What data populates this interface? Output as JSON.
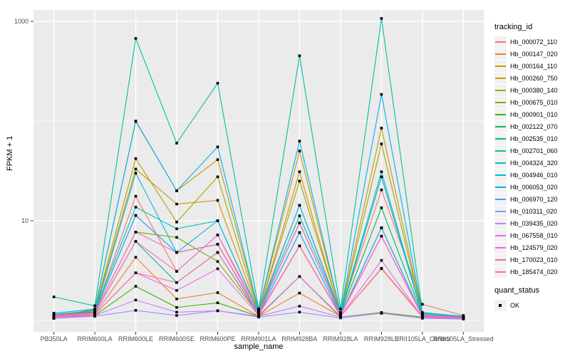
{
  "colors": {
    "panel_bg": "#EBEBEB",
    "grid_major": "#FFFFFF",
    "grid_minor": "#FFFFFF",
    "axis_text": "#4D4D4D",
    "tick_mark": "#333333",
    "point": "#000000",
    "legend_key_bg": "#F2F2F2"
  },
  "chart_data": {
    "type": "line",
    "title": "",
    "xlabel": "sample_name",
    "ylabel": "FPKM + 1",
    "y_scale": "log10",
    "ylim": [
      0.77,
      1300
    ],
    "yticks": [
      10,
      1000
    ],
    "yticks_minor": [
      1,
      100
    ],
    "grid": true,
    "legend_position": "right",
    "categories": [
      "PB350LA",
      "RRIM600LA",
      "RRIM600LE",
      "RRIM600SE",
      "RRIM600PE",
      "RRIM901LA",
      "RRIM928BA",
      "RRIM928LA",
      "RRIM928LE",
      "RRII105LA_Control",
      "RRII105LA_Stressed"
    ],
    "legend": {
      "color_title": "tracking_id",
      "shape_title": "quant_status",
      "shape_items": [
        "OK"
      ]
    },
    "series": [
      {
        "name": "Hb_000072_110",
        "color": "#F8766D",
        "values": [
          1.15,
          1.2,
          17.6,
          3.1,
          7.2,
          1.25,
          14.3,
          1.2,
          20.4,
          1.45,
          1.12
        ]
      },
      {
        "name": "Hb_000147_020",
        "color": "#EA8331",
        "values": [
          1.05,
          1.15,
          4.3,
          1.64,
          1.9,
          1.1,
          1.88,
          1.1,
          3.34,
          1.1,
          1.05
        ]
      },
      {
        "name": "Hb_000164_110",
        "color": "#D89000",
        "values": [
          1.1,
          1.25,
          33,
          14.7,
          16,
          1.2,
          31,
          1.15,
          27.6,
          1.15,
          1.08
        ]
      },
      {
        "name": "Hb_000260_750",
        "color": "#C09B00",
        "values": [
          1.08,
          1.3,
          99,
          20,
          41,
          1.25,
          50,
          1.2,
          85,
          1.18,
          1.1
        ]
      },
      {
        "name": "Hb_000380_140",
        "color": "#A3A500",
        "values": [
          1.12,
          1.28,
          42,
          9.7,
          27.6,
          1.22,
          25,
          1.18,
          59,
          1.15,
          1.07
        ]
      },
      {
        "name": "Hb_000675_010",
        "color": "#7CAE00",
        "values": [
          1.1,
          1.2,
          7.7,
          6.8,
          3.9,
          1.15,
          5.6,
          1.12,
          8.5,
          1.1,
          1.05
        ]
      },
      {
        "name": "Hb_000901_010",
        "color": "#39B600",
        "values": [
          1.05,
          1.12,
          2.2,
          1.35,
          1.5,
          1.1,
          2.76,
          1.08,
          1.2,
          1.08,
          1.04
        ]
      },
      {
        "name": "Hb_002122_070",
        "color": "#00BB4E",
        "values": [
          1.12,
          1.22,
          11.3,
          4.8,
          5.8,
          1.18,
          9.5,
          1.15,
          13.5,
          1.12,
          1.06
        ]
      },
      {
        "name": "Hb_002535_010",
        "color": "#00BF7D",
        "values": [
          1.1,
          1.18,
          6.2,
          2.4,
          4.8,
          1.15,
          7.6,
          1.12,
          8.5,
          1.1,
          1.05
        ]
      },
      {
        "name": "Hb_002701_060",
        "color": "#00C1A3",
        "values": [
          1.72,
          1.4,
          674,
          60,
          240,
          1.3,
          452,
          1.3,
          1070,
          1.2,
          1.1
        ]
      },
      {
        "name": "Hb_004324_320",
        "color": "#00BFC4",
        "values": [
          1.15,
          1.25,
          13.7,
          8.3,
          10,
          1.2,
          11.2,
          1.18,
          31,
          1.15,
          1.08
        ]
      },
      {
        "name": "Hb_004946_010",
        "color": "#00BAE0",
        "values": [
          1.1,
          1.2,
          30,
          4.8,
          10,
          1.18,
          14.3,
          1.15,
          27.6,
          1.12,
          1.06
        ]
      },
      {
        "name": "Hb_006053_020",
        "color": "#00B0F6",
        "values": [
          1.18,
          1.3,
          100,
          20,
          55,
          1.25,
          63,
          1.2,
          185,
          1.18,
          1.1
        ]
      },
      {
        "name": "Hb_006970_120",
        "color": "#35A2FF",
        "values": [
          1.1,
          1.2,
          11.3,
          4.8,
          5.8,
          1.15,
          7.6,
          1.12,
          8.5,
          1.1,
          1.05
        ]
      },
      {
        "name": "Hb_010311_020",
        "color": "#9590FF",
        "values": [
          1.05,
          1.1,
          1.26,
          1.12,
          1.25,
          1.08,
          1.21,
          1.06,
          1.18,
          1.05,
          1.03
        ]
      },
      {
        "name": "Hb_039435_020",
        "color": "#C77CFF",
        "values": [
          1.06,
          1.12,
          1.6,
          1.21,
          1.25,
          1.1,
          1.39,
          1.08,
          1.18,
          1.06,
          1.04
        ]
      },
      {
        "name": "Hb_067558_010",
        "color": "#E76BF3",
        "values": [
          1.08,
          1.15,
          3.0,
          2.0,
          3.3,
          1.12,
          2.76,
          1.1,
          4.0,
          1.08,
          1.05
        ]
      },
      {
        "name": "Hb_124579_020",
        "color": "#FA62DB",
        "values": [
          1.1,
          1.18,
          6.2,
          3.1,
          7.2,
          1.15,
          5.6,
          1.12,
          7.0,
          1.1,
          1.06
        ]
      },
      {
        "name": "Hb_170023_010",
        "color": "#FF62BC",
        "values": [
          1.12,
          1.2,
          7.7,
          4.8,
          5.8,
          1.18,
          9.5,
          1.15,
          7.0,
          1.12,
          1.07
        ]
      },
      {
        "name": "Hb_185474_020",
        "color": "#FF6A98",
        "values": [
          1.08,
          1.15,
          3.0,
          2.4,
          4.8,
          1.12,
          5.6,
          1.1,
          3.3,
          1.08,
          1.05
        ]
      }
    ]
  }
}
